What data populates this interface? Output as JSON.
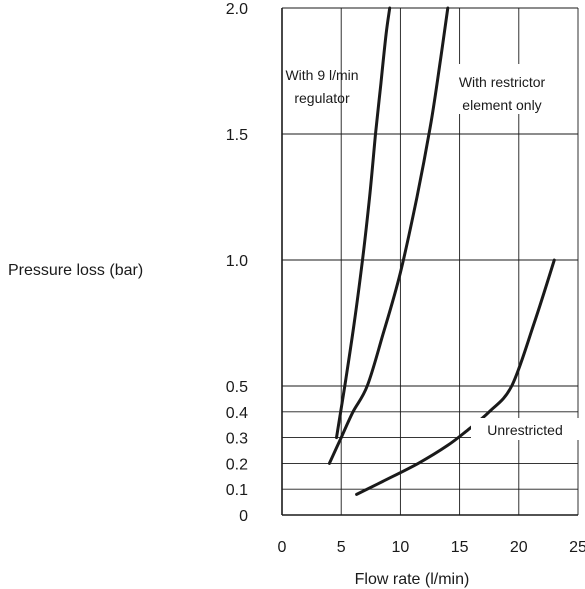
{
  "chart_data": {
    "type": "line",
    "title": "",
    "xlabel": "Flow rate (l/min)",
    "ylabel": "Pressure loss (bar)",
    "xlim": [
      0,
      25
    ],
    "ylim": [
      0,
      2.0
    ],
    "x_ticks": [
      0,
      5,
      10,
      15,
      20,
      25
    ],
    "x_tick_labels": [
      "0",
      "5",
      "10",
      "15",
      "20",
      "25"
    ],
    "y_ticks": [
      0,
      0.1,
      0.2,
      0.3,
      0.4,
      0.5,
      1.0,
      1.5,
      2.0
    ],
    "y_tick_labels": [
      "0",
      "0.1",
      "0.2",
      "0.3",
      "0.4",
      "0.5",
      "1.0",
      "1.5",
      "2.0"
    ],
    "y_scale_note": "non-linear: 0–0.5 compressed, 0.5–2.0 linear",
    "grid": true,
    "series": [
      {
        "name": "With 9 l/min\nregulator",
        "x": [
          4.6,
          5.3,
          6.1,
          6.8,
          7.4,
          7.9,
          8.35,
          8.8,
          9.1
        ],
        "y": [
          0.3,
          0.5,
          0.75,
          1.0,
          1.25,
          1.5,
          1.7,
          1.9,
          2.0
        ]
      },
      {
        "name": "With restrictor\nelement only",
        "x": [
          4.0,
          5.0,
          6.0,
          7.2,
          8.5,
          10.0,
          11.4,
          12.6,
          13.4,
          14.0
        ],
        "y": [
          0.2,
          0.3,
          0.4,
          0.5,
          0.7,
          0.95,
          1.25,
          1.55,
          1.8,
          2.0
        ]
      },
      {
        "name": "Unrestricted",
        "x": [
          6.3,
          8.5,
          11.5,
          14.0,
          15.7,
          17.5,
          19.4,
          21.3,
          23.0
        ],
        "y": [
          0.08,
          0.13,
          0.2,
          0.27,
          0.33,
          0.4,
          0.5,
          0.75,
          1.0
        ]
      }
    ],
    "annotations": {
      "regulator": [
        "With 9 l/min",
        "regulator"
      ],
      "restrictor": [
        "With restrictor",
        "element only"
      ],
      "unrestricted": [
        "Unrestricted"
      ]
    }
  }
}
